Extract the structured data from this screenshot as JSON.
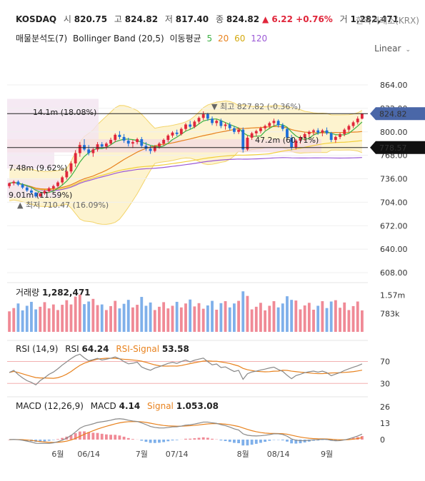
{
  "header": {
    "symbol": "KOSDAQ",
    "open_label": "시",
    "open": "820.75",
    "high_label": "고",
    "high": "824.82",
    "low_label": "저",
    "low": "817.40",
    "close_label": "종",
    "close": "824.82",
    "change": "▲ 6.22 +0.76%",
    "volume_label": "거",
    "volume": "1,282,471",
    "exchange": "한국거래소(KRX)"
  },
  "indicators": {
    "volume_profile": "매물분석도(7)",
    "bollinger": "Bollinger Band (20,5)",
    "ma_label": "이동평균",
    "ma5": "5",
    "ma20": "20",
    "ma60": "60",
    "ma120": "120"
  },
  "scale_label": "Linear",
  "colors": {
    "up": "#e0263b",
    "down": "#1e6fd9",
    "ma5": "#3cb043",
    "ma20": "#e8821e",
    "ma60": "#f2cf3b",
    "ma120": "#9b59d6",
    "band_fill": "#fdf3cf",
    "band_line": "#f3d46a",
    "price_tag": "#4a67a8"
  },
  "chart_data": [
    {
      "type": "candlestick",
      "panel": "price",
      "yticks": [
        608,
        640,
        672,
        704,
        736,
        768,
        800,
        832,
        864
      ],
      "ytick_labels": [
        "608.00",
        "640.00",
        "672.00",
        "704.00",
        "736.00",
        "768.00",
        "800.00",
        "832.00",
        "864.00"
      ],
      "ylim": [
        600,
        882
      ],
      "x_labels": [
        "6월",
        "06/14",
        "7월",
        "07/14",
        "8월",
        "08/14",
        "9월"
      ],
      "x_label_index": [
        11,
        18,
        30,
        38,
        53,
        61,
        72
      ],
      "candles": [
        [
          726,
          731,
          723,
          730
        ],
        [
          730,
          734,
          727,
          732
        ],
        [
          732,
          734,
          726,
          728
        ],
        [
          728,
          730,
          722,
          724
        ],
        [
          724,
          727,
          718,
          720
        ],
        [
          720,
          723,
          714,
          717
        ],
        [
          717,
          718,
          710,
          712
        ],
        [
          712,
          717,
          711,
          716
        ],
        [
          716,
          721,
          714,
          719
        ],
        [
          719,
          725,
          717,
          723
        ],
        [
          723,
          728,
          720,
          726
        ],
        [
          726,
          733,
          723,
          731
        ],
        [
          731,
          740,
          728,
          738
        ],
        [
          738,
          748,
          735,
          746
        ],
        [
          746,
          760,
          743,
          757
        ],
        [
          757,
          775,
          752,
          771
        ],
        [
          771,
          786,
          766,
          782
        ],
        [
          782,
          790,
          774,
          776
        ],
        [
          776,
          782,
          768,
          771
        ],
        [
          771,
          778,
          766,
          776
        ],
        [
          776,
          786,
          773,
          783
        ],
        [
          783,
          786,
          778,
          780
        ],
        [
          780,
          786,
          776,
          784
        ],
        [
          784,
          792,
          782,
          789
        ],
        [
          789,
          798,
          786,
          796
        ],
        [
          796,
          801,
          790,
          793
        ],
        [
          793,
          797,
          785,
          788
        ],
        [
          788,
          792,
          780,
          784
        ],
        [
          784,
          789,
          778,
          786
        ],
        [
          786,
          792,
          783,
          790
        ],
        [
          790,
          793,
          778,
          781
        ],
        [
          781,
          786,
          774,
          777
        ],
        [
          777,
          781,
          770,
          774
        ],
        [
          774,
          782,
          772,
          780
        ],
        [
          780,
          786,
          777,
          784
        ],
        [
          784,
          791,
          781,
          789
        ],
        [
          789,
          797,
          786,
          795
        ],
        [
          795,
          801,
          792,
          799
        ],
        [
          799,
          803,
          794,
          797
        ],
        [
          797,
          806,
          795,
          804
        ],
        [
          804,
          812,
          801,
          810
        ],
        [
          810,
          815,
          804,
          807
        ],
        [
          807,
          816,
          805,
          814
        ],
        [
          814,
          821,
          811,
          819
        ],
        [
          819,
          828,
          816,
          824
        ],
        [
          824,
          826,
          815,
          818
        ],
        [
          818,
          821,
          809,
          812
        ],
        [
          812,
          817,
          808,
          815
        ],
        [
          815,
          818,
          805,
          808
        ],
        [
          808,
          813,
          803,
          810
        ],
        [
          810,
          813,
          802,
          805
        ],
        [
          805,
          808,
          797,
          800
        ],
        [
          800,
          806,
          797,
          803
        ],
        [
          803,
          806,
          772,
          776
        ],
        [
          776,
          795,
          774,
          792
        ],
        [
          792,
          800,
          789,
          798
        ],
        [
          798,
          803,
          794,
          801
        ],
        [
          801,
          807,
          798,
          805
        ],
        [
          805,
          810,
          802,
          808
        ],
        [
          808,
          814,
          805,
          812
        ],
        [
          812,
          818,
          808,
          815
        ],
        [
          815,
          817,
          806,
          809
        ],
        [
          809,
          812,
          801,
          804
        ],
        [
          804,
          806,
          790,
          792
        ],
        [
          792,
          796,
          775,
          779
        ],
        [
          779,
          790,
          776,
          788
        ],
        [
          788,
          795,
          784,
          792
        ],
        [
          792,
          799,
          788,
          797
        ],
        [
          797,
          802,
          793,
          800
        ],
        [
          800,
          804,
          795,
          802
        ],
        [
          802,
          805,
          796,
          799
        ],
        [
          799,
          804,
          794,
          802
        ],
        [
          802,
          806,
          796,
          798
        ],
        [
          798,
          800,
          786,
          789
        ],
        [
          789,
          795,
          785,
          793
        ],
        [
          793,
          799,
          790,
          797
        ],
        [
          797,
          805,
          794,
          803
        ],
        [
          803,
          810,
          800,
          808
        ],
        [
          808,
          815,
          805,
          813
        ],
        [
          813,
          821,
          810,
          818
        ],
        [
          818,
          825,
          817,
          825
        ]
      ],
      "ma_final": {
        "ma5": 812,
        "ma20": 802,
        "ma60": 788,
        "ma120": 765
      },
      "price_tags": [
        "824.82",
        "778.57"
      ],
      "price_tag_values": [
        824.82,
        778.57
      ],
      "annotations": {
        "high": "▼ 최고 827.82 (-0.36%)",
        "low": "▲ 최저 710.47 (16.09%)",
        "profile_top": "14.1m (18.08%)",
        "profile_mid": "47.2m (60.71%)",
        "profile_upper_left": "7.48m (9.62%)",
        "profile_low": "9.01m (11.59%)"
      }
    },
    {
      "type": "bar",
      "panel": "volume",
      "title": "거래량",
      "value_label": "1,282,471",
      "ytick_labels": [
        "1.57m",
        "783k"
      ],
      "yticks": [
        1570000,
        783000
      ],
      "ylim": [
        0,
        2100000
      ]
    },
    {
      "type": "line",
      "panel": "rsi",
      "title": "RSI (14,9)",
      "series_labels": [
        "RSI",
        "RSI-Signal"
      ],
      "series_values": [
        "64.24",
        "53.58"
      ],
      "levels": [
        70,
        30
      ],
      "level_labels": [
        "70",
        "30"
      ],
      "ylim": [
        20,
        85
      ]
    },
    {
      "type": "line",
      "panel": "macd",
      "title": "MACD (12,26,9)",
      "series_labels": [
        "MACD",
        "Signal"
      ],
      "series_values": [
        "4.14",
        "1.053.08"
      ],
      "yticks": [
        26,
        13,
        0
      ],
      "ytick_labels": [
        "26",
        "13",
        "0"
      ],
      "ylim": [
        -4,
        30
      ]
    }
  ]
}
